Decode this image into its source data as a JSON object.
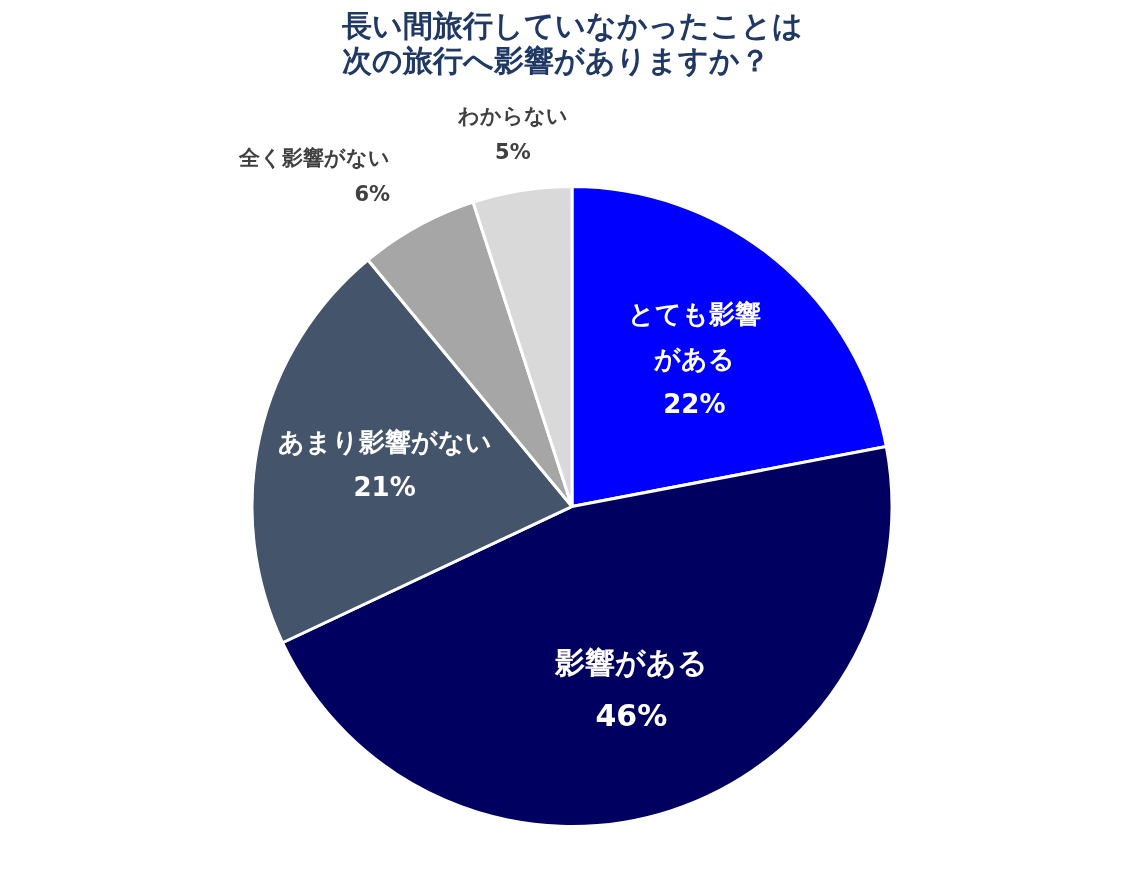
{
  "chart_data": {
    "type": "pie",
    "title": "長い間旅行していなかったことは次の旅行へ影響がありますか？",
    "categories": [
      "とても影響がある",
      "影響がある",
      "あまり影響がない",
      "全く影響がない",
      "わからない"
    ],
    "values": [
      22,
      46,
      21,
      6,
      5
    ],
    "value_labels": [
      "22%",
      "46%",
      "21%",
      "6%",
      "5%"
    ],
    "colors": [
      "#0000ff",
      "#000060",
      "#44546a",
      "#a6a6a6",
      "#d9d9d9"
    ]
  }
}
